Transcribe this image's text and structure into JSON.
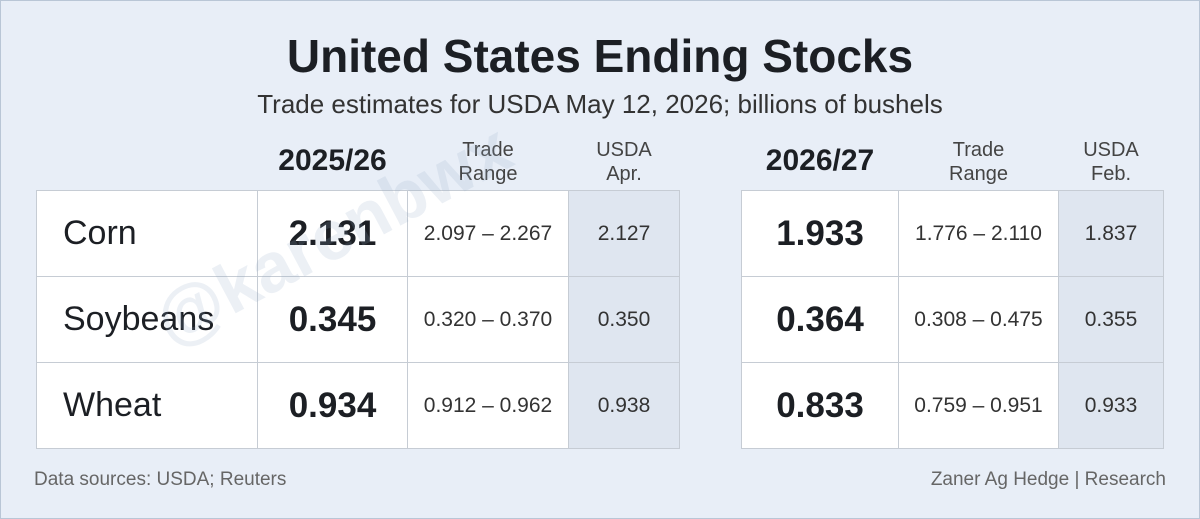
{
  "header": {
    "title": "United States Ending Stocks",
    "subtitle": "Trade estimates for USDA May 12, 2026; billions of bushels"
  },
  "row_labels": [
    "Corn",
    "Soybeans",
    "Wheat"
  ],
  "tables": [
    {
      "year": "2025/26",
      "range_header": [
        "Trade",
        "Range"
      ],
      "usda_header": [
        "USDA",
        "Apr."
      ],
      "rows": [
        [
          "2.131",
          "2.097 – 2.267",
          "2.127"
        ],
        [
          "0.345",
          "0.320 – 0.370",
          "0.350"
        ],
        [
          "0.934",
          "0.912 – 0.962",
          "0.938"
        ]
      ]
    },
    {
      "year": "2026/27",
      "range_header": [
        "Trade",
        "Range"
      ],
      "usda_header": [
        "USDA",
        "Feb."
      ],
      "rows": [
        [
          "1.933",
          "1.776 – 2.110",
          "1.837"
        ],
        [
          "0.364",
          "0.308 – 0.475",
          "0.355"
        ],
        [
          "0.833",
          "0.759 – 0.951",
          "0.933"
        ]
      ]
    }
  ],
  "watermark": "@karenbwx",
  "footer": {
    "source": "Data sources: USDA; Reuters",
    "credit": "Zaner Ag Hedge | Research"
  }
}
